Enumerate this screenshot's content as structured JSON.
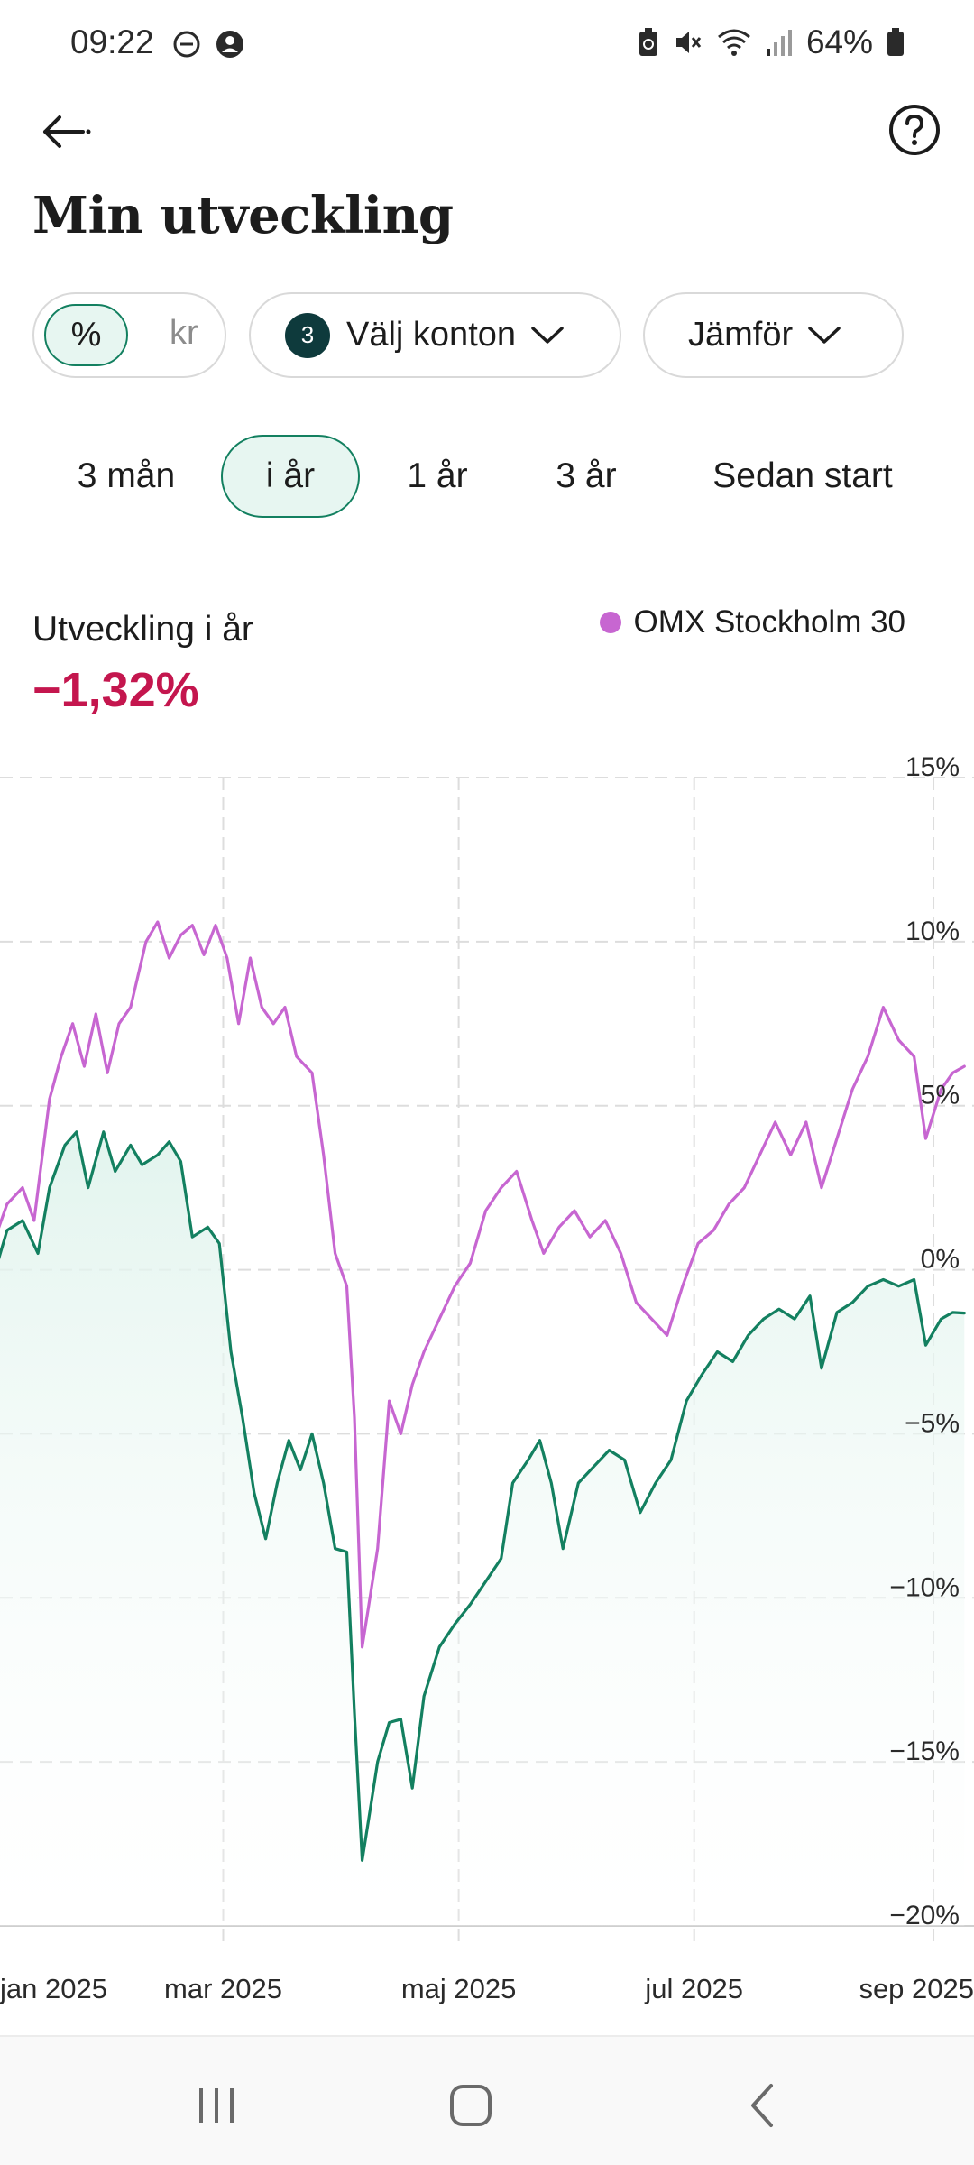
{
  "status_bar": {
    "time": "09:22",
    "battery": "64%",
    "left_icons": [
      "do-not-disturb-icon",
      "account-icon"
    ],
    "right_icons": [
      "recycle-battery-icon",
      "mute-icon",
      "wifi-icon",
      "signal-icon",
      "battery-icon"
    ]
  },
  "header": {
    "back_icon": "arrow-left-icon",
    "help_icon": "help-circle-icon",
    "title": "Min utveckling"
  },
  "filters": {
    "unit_options": [
      "%",
      "kr"
    ],
    "unit_selected": "%",
    "accounts_count": "3",
    "accounts_label": "Välj konton",
    "compare_label": "Jämför"
  },
  "ranges": {
    "items": [
      "3 mån",
      "i år",
      "1 år",
      "3 år",
      "Sedan start"
    ],
    "selected": "i år"
  },
  "summary": {
    "label": "Utveckling i år",
    "value": "−1,32%",
    "value_color": "#c4164e"
  },
  "colors": {
    "portfolio": "#138060",
    "benchmark": "#c766d1",
    "accent": "#138060",
    "negative": "#c4164e"
  },
  "chart_data": {
    "type": "line",
    "ylim": [
      -20,
      15
    ],
    "y_ticks": [
      "15%",
      "10%",
      "5%",
      "0%",
      "−5%",
      "−10%",
      "−15%",
      "−20%"
    ],
    "y_tick_values": [
      15,
      10,
      5,
      0,
      -5,
      -10,
      -15,
      -20
    ],
    "x_ticks": [
      "jan 2025",
      "mar 2025",
      "maj 2025",
      "jul 2025",
      "sep 2025"
    ],
    "x_tick_dates": [
      "2025-01-01",
      "2025-03-01",
      "2025-05-01",
      "2025-07-01",
      "2025-09-01"
    ],
    "x_range": [
      "2025-01-01",
      "2025-09-09"
    ],
    "grid": true,
    "legend": "top-right",
    "series": [
      {
        "name": "",
        "color": "#138060",
        "area_fill": true,
        "points": [
          [
            "2025-01-01",
            0.0
          ],
          [
            "2025-01-04",
            1.2
          ],
          [
            "2025-01-08",
            1.5
          ],
          [
            "2025-01-12",
            0.5
          ],
          [
            "2025-01-15",
            2.5
          ],
          [
            "2025-01-19",
            3.8
          ],
          [
            "2025-01-22",
            4.2
          ],
          [
            "2025-01-25",
            2.5
          ],
          [
            "2025-01-29",
            4.2
          ],
          [
            "2025-02-01",
            3.0
          ],
          [
            "2025-02-05",
            3.8
          ],
          [
            "2025-02-08",
            3.2
          ],
          [
            "2025-02-12",
            3.5
          ],
          [
            "2025-02-15",
            3.9
          ],
          [
            "2025-02-18",
            3.3
          ],
          [
            "2025-02-21",
            1.0
          ],
          [
            "2025-02-25",
            1.3
          ],
          [
            "2025-02-28",
            0.8
          ],
          [
            "2025-03-03",
            -2.5
          ],
          [
            "2025-03-06",
            -4.5
          ],
          [
            "2025-03-09",
            -6.8
          ],
          [
            "2025-03-12",
            -8.2
          ],
          [
            "2025-03-15",
            -6.5
          ],
          [
            "2025-03-18",
            -5.2
          ],
          [
            "2025-03-21",
            -6.1
          ],
          [
            "2025-03-24",
            -5.0
          ],
          [
            "2025-03-27",
            -6.5
          ],
          [
            "2025-03-30",
            -8.5
          ],
          [
            "2025-04-02",
            -8.6
          ],
          [
            "2025-04-04",
            -13.5
          ],
          [
            "2025-04-06",
            -18.0
          ],
          [
            "2025-04-08",
            -16.5
          ],
          [
            "2025-04-10",
            -15.0
          ],
          [
            "2025-04-13",
            -13.8
          ],
          [
            "2025-04-16",
            -13.7
          ],
          [
            "2025-04-19",
            -15.8
          ],
          [
            "2025-04-22",
            -13.0
          ],
          [
            "2025-04-26",
            -11.5
          ],
          [
            "2025-04-30",
            -10.8
          ],
          [
            "2025-05-04",
            -10.2
          ],
          [
            "2025-05-08",
            -9.5
          ],
          [
            "2025-05-12",
            -8.8
          ],
          [
            "2025-05-15",
            -6.5
          ],
          [
            "2025-05-19",
            -5.8
          ],
          [
            "2025-05-22",
            -5.2
          ],
          [
            "2025-05-25",
            -6.5
          ],
          [
            "2025-05-28",
            -8.5
          ],
          [
            "2025-06-01",
            -6.5
          ],
          [
            "2025-06-05",
            -6.0
          ],
          [
            "2025-06-09",
            -5.5
          ],
          [
            "2025-06-13",
            -5.8
          ],
          [
            "2025-06-17",
            -7.4
          ],
          [
            "2025-06-21",
            -6.5
          ],
          [
            "2025-06-25",
            -5.8
          ],
          [
            "2025-06-29",
            -4.0
          ],
          [
            "2025-07-03",
            -3.2
          ],
          [
            "2025-07-07",
            -2.5
          ],
          [
            "2025-07-11",
            -2.8
          ],
          [
            "2025-07-15",
            -2.0
          ],
          [
            "2025-07-19",
            -1.5
          ],
          [
            "2025-07-23",
            -1.2
          ],
          [
            "2025-07-27",
            -1.5
          ],
          [
            "2025-07-31",
            -0.8
          ],
          [
            "2025-08-03",
            -3.0
          ],
          [
            "2025-08-07",
            -1.3
          ],
          [
            "2025-08-11",
            -1.0
          ],
          [
            "2025-08-15",
            -0.5
          ],
          [
            "2025-08-19",
            -0.3
          ],
          [
            "2025-08-23",
            -0.5
          ],
          [
            "2025-08-27",
            -0.3
          ],
          [
            "2025-08-30",
            -2.3
          ],
          [
            "2025-09-03",
            -1.5
          ],
          [
            "2025-09-06",
            -1.3
          ],
          [
            "2025-09-09",
            -1.32
          ]
        ]
      },
      {
        "name": "OMX Stockholm 30",
        "color": "#c766d1",
        "area_fill": false,
        "points": [
          [
            "2025-01-01",
            1.0
          ],
          [
            "2025-01-04",
            2.0
          ],
          [
            "2025-01-08",
            2.5
          ],
          [
            "2025-01-11",
            1.5
          ],
          [
            "2025-01-15",
            5.2
          ],
          [
            "2025-01-18",
            6.5
          ],
          [
            "2025-01-21",
            7.5
          ],
          [
            "2025-01-24",
            6.2
          ],
          [
            "2025-01-27",
            7.8
          ],
          [
            "2025-01-30",
            6.0
          ],
          [
            "2025-02-02",
            7.5
          ],
          [
            "2025-02-05",
            8.0
          ],
          [
            "2025-02-09",
            10.0
          ],
          [
            "2025-02-12",
            10.6
          ],
          [
            "2025-02-15",
            9.5
          ],
          [
            "2025-02-18",
            10.2
          ],
          [
            "2025-02-21",
            10.5
          ],
          [
            "2025-02-24",
            9.6
          ],
          [
            "2025-02-27",
            10.5
          ],
          [
            "2025-03-02",
            9.5
          ],
          [
            "2025-03-05",
            7.5
          ],
          [
            "2025-03-08",
            9.5
          ],
          [
            "2025-03-11",
            8.0
          ],
          [
            "2025-03-14",
            7.5
          ],
          [
            "2025-03-17",
            8.0
          ],
          [
            "2025-03-20",
            6.5
          ],
          [
            "2025-03-24",
            6.0
          ],
          [
            "2025-03-27",
            3.5
          ],
          [
            "2025-03-30",
            0.5
          ],
          [
            "2025-04-02",
            -0.5
          ],
          [
            "2025-04-04",
            -4.5
          ],
          [
            "2025-04-06",
            -11.5
          ],
          [
            "2025-04-08",
            -10.0
          ],
          [
            "2025-04-10",
            -8.5
          ],
          [
            "2025-04-13",
            -4.0
          ],
          [
            "2025-04-16",
            -5.0
          ],
          [
            "2025-04-19",
            -3.5
          ],
          [
            "2025-04-22",
            -2.5
          ],
          [
            "2025-04-26",
            -1.5
          ],
          [
            "2025-04-30",
            -0.5
          ],
          [
            "2025-05-04",
            0.2
          ],
          [
            "2025-05-08",
            1.8
          ],
          [
            "2025-05-12",
            2.5
          ],
          [
            "2025-05-16",
            3.0
          ],
          [
            "2025-05-20",
            1.5
          ],
          [
            "2025-05-23",
            0.5
          ],
          [
            "2025-05-27",
            1.3
          ],
          [
            "2025-05-31",
            1.8
          ],
          [
            "2025-06-04",
            1.0
          ],
          [
            "2025-06-08",
            1.5
          ],
          [
            "2025-06-12",
            0.5
          ],
          [
            "2025-06-16",
            -1.0
          ],
          [
            "2025-06-20",
            -1.5
          ],
          [
            "2025-06-24",
            -2.0
          ],
          [
            "2025-06-28",
            -0.5
          ],
          [
            "2025-07-02",
            0.8
          ],
          [
            "2025-07-06",
            1.2
          ],
          [
            "2025-07-10",
            2.0
          ],
          [
            "2025-07-14",
            2.5
          ],
          [
            "2025-07-18",
            3.5
          ],
          [
            "2025-07-22",
            4.5
          ],
          [
            "2025-07-26",
            3.5
          ],
          [
            "2025-07-30",
            4.5
          ],
          [
            "2025-08-03",
            2.5
          ],
          [
            "2025-08-07",
            4.0
          ],
          [
            "2025-08-11",
            5.5
          ],
          [
            "2025-08-15",
            6.5
          ],
          [
            "2025-08-19",
            8.0
          ],
          [
            "2025-08-23",
            7.0
          ],
          [
            "2025-08-27",
            6.5
          ],
          [
            "2025-08-30",
            4.0
          ],
          [
            "2025-09-03",
            5.5
          ],
          [
            "2025-09-06",
            6.0
          ],
          [
            "2025-09-09",
            6.2
          ]
        ]
      }
    ]
  },
  "nav_bar": {
    "icons": [
      "recent-apps-icon",
      "home-icon",
      "back-icon"
    ]
  }
}
